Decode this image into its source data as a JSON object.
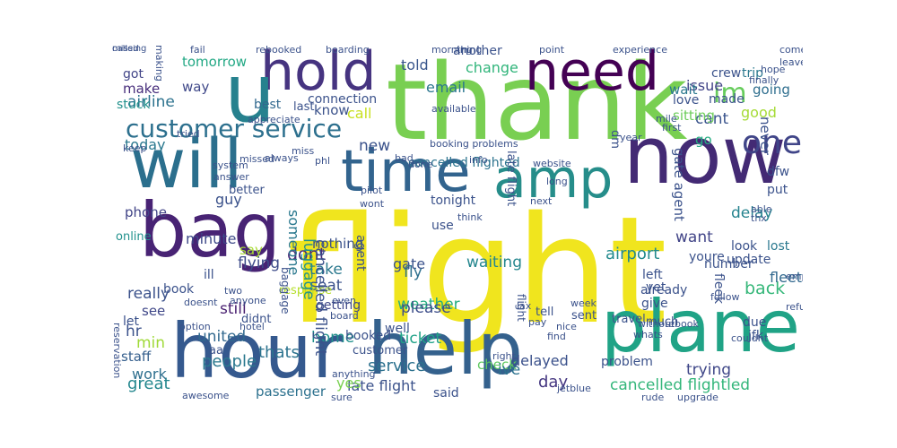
{
  "cloud": {
    "words": [
      {
        "text": "flight",
        "c": "#f0e51e",
        "v": false
      },
      {
        "text": "thank",
        "c": "#79cf52",
        "v": false
      },
      {
        "text": "now",
        "c": "#432a74",
        "v": false
      },
      {
        "text": "will",
        "c": "#2b6f8d",
        "v": false
      },
      {
        "text": "hour",
        "c": "#35598e",
        "v": false
      },
      {
        "text": "help",
        "c": "#34618d",
        "v": false
      },
      {
        "text": "plane",
        "c": "#20a386",
        "v": false
      },
      {
        "text": "amp",
        "c": "#268d8a",
        "v": false
      },
      {
        "text": "bag",
        "c": "#482374",
        "v": false
      },
      {
        "text": "time",
        "c": "#32648e",
        "v": false
      },
      {
        "text": "hold",
        "c": "#463480",
        "v": false
      },
      {
        "text": "u",
        "c": "#26818e",
        "v": false
      },
      {
        "text": "need",
        "c": "#440154",
        "v": false
      },
      {
        "text": "customer service",
        "c": "#2d708e",
        "v": false
      },
      {
        "text": "one",
        "c": "#404588",
        "v": false
      },
      {
        "text": "im",
        "c": "#67cc5c",
        "v": false
      },
      {
        "text": "cancelled flightled",
        "c": "#33b67a",
        "v": false
      },
      {
        "text": "late flight",
        "c": "#3b528b",
        "v": false
      },
      {
        "text": "thats",
        "c": "#2c738e",
        "v": false
      },
      {
        "text": "service",
        "c": "#2c718e",
        "v": false
      },
      {
        "text": "check",
        "c": "#60ca60",
        "v": false
      },
      {
        "text": "weather",
        "c": "#26ad81",
        "v": false
      },
      {
        "text": "delayed",
        "c": "#3b518b",
        "v": false
      },
      {
        "text": "waiting",
        "c": "#24868e",
        "v": false
      },
      {
        "text": "airport",
        "c": "#238a8d",
        "v": false
      },
      {
        "text": "people",
        "c": "#2a788e",
        "v": false
      },
      {
        "text": "trying",
        "c": "#3f4788",
        "v": false
      },
      {
        "text": "flying",
        "c": "#3e4c8a",
        "v": false
      },
      {
        "text": "please",
        "c": "#3d4e8a",
        "v": false
      },
      {
        "text": "ticket",
        "c": "#1fa287",
        "v": false
      },
      {
        "text": "great",
        "c": "#24878e",
        "v": false
      },
      {
        "text": "gate",
        "c": "#3b528b",
        "v": false
      },
      {
        "text": "tomorrow",
        "c": "#22a884",
        "v": false
      },
      {
        "text": "told",
        "c": "#39568c",
        "v": false
      },
      {
        "text": "change",
        "c": "#31b57b",
        "v": false
      },
      {
        "text": "issue",
        "c": "#414487",
        "v": false
      },
      {
        "text": "going",
        "c": "#2e6e8e",
        "v": false
      },
      {
        "text": "airline",
        "c": "#2c728e",
        "v": false
      },
      {
        "text": "good",
        "c": "#a5db36",
        "v": false
      },
      {
        "text": "know",
        "c": "#3b528b",
        "v": false
      },
      {
        "text": "call",
        "c": "#c8e020",
        "v": false
      },
      {
        "text": "email",
        "c": "#2a768e",
        "v": false
      },
      {
        "text": "make",
        "c": "#472d7b",
        "v": false
      },
      {
        "text": "way",
        "c": "#3f4889",
        "v": false
      },
      {
        "text": "got",
        "c": "#414487",
        "v": false
      },
      {
        "text": "cant",
        "c": "#3a548c",
        "v": false
      },
      {
        "text": "go",
        "c": "#25ac82",
        "v": false
      },
      {
        "text": "today",
        "c": "#2a788e",
        "v": false
      },
      {
        "text": "new",
        "c": "#3b528b",
        "v": false
      },
      {
        "text": "phone",
        "c": "#414487",
        "v": false
      },
      {
        "text": "minute",
        "c": "#3e4989",
        "v": false
      },
      {
        "text": "want",
        "c": "#414487",
        "v": false
      },
      {
        "text": "delay",
        "c": "#25838e",
        "v": false
      },
      {
        "text": "say",
        "c": "#a8db34",
        "v": false
      },
      {
        "text": "fly",
        "c": "#2d708e",
        "v": false
      },
      {
        "text": "seat",
        "c": "#3b528b",
        "v": false
      },
      {
        "text": "take",
        "c": "#2a788e",
        "v": false
      },
      {
        "text": "back",
        "c": "#35b779",
        "v": false
      },
      {
        "text": "really",
        "c": "#3b528b",
        "v": false
      },
      {
        "text": "still",
        "c": "#481f70",
        "v": false
      },
      {
        "text": "united",
        "c": "#31688e",
        "v": false
      },
      {
        "text": "work",
        "c": "#2e6f8e",
        "v": false
      },
      {
        "text": "min",
        "c": "#a0da39",
        "v": false
      },
      {
        "text": "hr",
        "c": "#3b528b",
        "v": false
      },
      {
        "text": "yes",
        "c": "#7ad151",
        "v": false
      },
      {
        "text": "day",
        "c": "#453781",
        "v": false
      },
      {
        "text": "ive",
        "c": "#2c728e",
        "v": false
      },
      {
        "text": "home",
        "c": "#21918c",
        "v": false
      },
      {
        "text": "guy",
        "c": "#3b528b",
        "v": false
      },
      {
        "text": "dont",
        "c": "#472c7a",
        "v": false
      },
      {
        "text": "cancelled flighted",
        "c": "#2c738e",
        "v": false
      },
      {
        "text": "staff",
        "c": "#355f8d",
        "v": false
      },
      {
        "text": "see",
        "c": "#3f4788",
        "v": false
      },
      {
        "text": "fleet",
        "c": "#31688e",
        "v": false
      },
      {
        "text": "passenger",
        "c": "#2c718e",
        "v": false
      },
      {
        "text": "getting",
        "c": "#3f4788",
        "v": false
      },
      {
        "text": "nothing",
        "c": "#3b528b",
        "v": false
      },
      {
        "text": "put",
        "c": "#3b528b",
        "v": false
      },
      {
        "text": "dfw",
        "c": "#3b528b",
        "v": false
      },
      {
        "text": "lost",
        "c": "#2a788e",
        "v": false
      },
      {
        "text": "last",
        "c": "#3b528b",
        "v": false
      },
      {
        "text": "connection",
        "c": "#3b528b",
        "v": false
      },
      {
        "text": "best",
        "c": "#31688e",
        "v": false
      },
      {
        "text": "love",
        "c": "#3b528b",
        "v": false
      },
      {
        "text": "wait",
        "c": "#2a788e",
        "v": false
      },
      {
        "text": "made",
        "c": "#3b528b",
        "v": false
      },
      {
        "text": "crew",
        "c": "#3b528b",
        "v": false
      },
      {
        "text": "trip",
        "c": "#2a788e",
        "v": false
      },
      {
        "text": "sitting",
        "c": "#6ccd5a",
        "v": false
      },
      {
        "text": "stuck",
        "c": "#21918c",
        "v": false
      },
      {
        "text": "another",
        "c": "#3b528b",
        "v": false
      },
      {
        "text": "youre",
        "c": "#3b528b",
        "v": false
      },
      {
        "text": "look",
        "c": "#3b528b",
        "v": false
      },
      {
        "text": "number",
        "c": "#3b528b",
        "v": false
      },
      {
        "text": "update",
        "c": "#3b528b",
        "v": false
      },
      {
        "text": "already",
        "c": "#3b528b",
        "v": false
      },
      {
        "text": "give",
        "c": "#3b528b",
        "v": false
      },
      {
        "text": "left",
        "c": "#3b528b",
        "v": false
      },
      {
        "text": "yet",
        "c": "#3b528b",
        "v": false
      },
      {
        "text": "sent",
        "c": "#3b528b",
        "v": false
      },
      {
        "text": "travel",
        "c": "#3b528b",
        "v": false
      },
      {
        "text": "much",
        "c": "#3b528b",
        "v": false
      },
      {
        "text": "due",
        "c": "#3b528b",
        "v": false
      },
      {
        "text": "jfk",
        "c": "#3b528b",
        "v": false
      },
      {
        "text": "said",
        "c": "#3b528b",
        "v": false
      },
      {
        "text": "well",
        "c": "#3b528b",
        "v": false
      },
      {
        "text": "booked",
        "c": "#3b528b",
        "v": false
      },
      {
        "text": "customer",
        "c": "#3b528b",
        "v": false
      },
      {
        "text": "use",
        "c": "#3b528b",
        "v": false
      },
      {
        "text": "tonight",
        "c": "#3b528b",
        "v": false
      },
      {
        "text": "online",
        "c": "#21918c",
        "v": false
      },
      {
        "text": "book",
        "c": "#3b528b",
        "v": false
      },
      {
        "text": "ill",
        "c": "#3b528b",
        "v": false
      },
      {
        "text": "better",
        "c": "#3b528b",
        "v": false
      },
      {
        "text": "didnt",
        "c": "#3b528b",
        "v": false
      },
      {
        "text": "let",
        "c": "#3b528b",
        "v": false
      },
      {
        "text": "aa",
        "c": "#3b528b",
        "v": false
      },
      {
        "text": "problem",
        "c": "#3b528b",
        "v": false
      },
      {
        "text": "tell",
        "c": "#3b528b",
        "v": false
      },
      {
        "text": "response",
        "c": "#b5de2b",
        "v": false
      },
      {
        "text": "someone",
        "c": "#2a788e",
        "v": true
      },
      {
        "text": "agent",
        "c": "#3b528b",
        "v": true
      },
      {
        "text": "luggage",
        "c": "#21918c",
        "v": true
      },
      {
        "text": "dm",
        "c": "#3b528b",
        "v": true
      },
      {
        "text": "never",
        "c": "#3b528b",
        "v": true
      },
      {
        "text": "cancelled flight",
        "c": "#3b528b",
        "v": true
      },
      {
        "text": "fleek",
        "c": "#3b528b",
        "v": true
      },
      {
        "text": "late flight",
        "c": "#3b528b",
        "v": true
      },
      {
        "text": "gate agent",
        "c": "#3b528b",
        "v": true
      },
      {
        "text": "baggage",
        "c": "#3b528b",
        "v": true
      },
      {
        "text": "flight",
        "c": "#3b528b",
        "v": true
      },
      {
        "text": "reservation",
        "c": "#3b528b",
        "v": true
      },
      {
        "text": "making",
        "c": "#3b528b",
        "v": true
      },
      {
        "text": "fail",
        "c": "#3b528b",
        "v": false
      },
      {
        "text": "rebooked",
        "c": "#3b528b",
        "v": false
      },
      {
        "text": "boarding",
        "c": "#3b528b",
        "v": false
      },
      {
        "text": "thing",
        "c": "#3b528b",
        "v": false
      },
      {
        "text": "morning",
        "c": "#3b528b",
        "v": false
      },
      {
        "text": "point",
        "c": "#3b528b",
        "v": false
      },
      {
        "text": "experience",
        "c": "#3b528b",
        "v": false
      },
      {
        "text": "come",
        "c": "#3b528b",
        "v": false
      },
      {
        "text": "leave",
        "c": "#3b528b",
        "v": false
      },
      {
        "text": "keep",
        "c": "#3b528b",
        "v": false
      },
      {
        "text": "tried",
        "c": "#3b528b",
        "v": false
      },
      {
        "text": "appreciate",
        "c": "#3b528b",
        "v": false
      },
      {
        "text": "available",
        "c": "#3b528b",
        "v": false
      },
      {
        "text": "hope",
        "c": "#3b528b",
        "v": false
      },
      {
        "text": "finally",
        "c": "#3b528b",
        "v": false
      },
      {
        "text": "mile",
        "c": "#3b528b",
        "v": false
      },
      {
        "text": "booking problems",
        "c": "#3b528b",
        "v": false
      },
      {
        "text": "first",
        "c": "#3b528b",
        "v": false
      },
      {
        "text": "year",
        "c": "#3b528b",
        "v": false
      },
      {
        "text": "missed",
        "c": "#3b528b",
        "v": false
      },
      {
        "text": "always",
        "c": "#3b528b",
        "v": false
      },
      {
        "text": "system",
        "c": "#3b528b",
        "v": false
      },
      {
        "text": "phl",
        "c": "#3b528b",
        "v": false
      },
      {
        "text": "miss",
        "c": "#3b528b",
        "v": false
      },
      {
        "text": "done",
        "c": "#3b528b",
        "v": false
      },
      {
        "text": "answer",
        "c": "#3b528b",
        "v": false
      },
      {
        "text": "pilot",
        "c": "#3b528b",
        "v": false
      },
      {
        "text": "wont",
        "c": "#3b528b",
        "v": false
      },
      {
        "text": "next",
        "c": "#3b528b",
        "v": false
      },
      {
        "text": "think",
        "c": "#3b528b",
        "v": false
      },
      {
        "text": "website",
        "c": "#3b528b",
        "v": false
      },
      {
        "text": "long",
        "c": "#3b528b",
        "v": false
      },
      {
        "text": "bad",
        "c": "#3b528b",
        "v": false
      },
      {
        "text": "info",
        "c": "#3b528b",
        "v": false
      },
      {
        "text": "able",
        "c": "#3b528b",
        "v": false
      },
      {
        "text": "thx",
        "c": "#3b528b",
        "v": false
      },
      {
        "text": "doesnt",
        "c": "#3b528b",
        "v": false
      },
      {
        "text": "two",
        "c": "#3b528b",
        "v": false
      },
      {
        "text": "option",
        "c": "#3b528b",
        "v": false
      },
      {
        "text": "anyone",
        "c": "#3b528b",
        "v": false
      },
      {
        "text": "hotel",
        "c": "#3b528b",
        "v": false
      },
      {
        "text": "even",
        "c": "#3b528b",
        "v": false
      },
      {
        "text": "board",
        "c": "#3b528b",
        "v": false
      },
      {
        "text": "lax",
        "c": "#3b528b",
        "v": false
      },
      {
        "text": "nice",
        "c": "#3b528b",
        "v": false
      },
      {
        "text": "week",
        "c": "#3b528b",
        "v": false
      },
      {
        "text": "pay",
        "c": "#3b528b",
        "v": false
      },
      {
        "text": "find",
        "c": "#3b528b",
        "v": false
      },
      {
        "text": "whats",
        "c": "#3b528b",
        "v": false
      },
      {
        "text": "without",
        "c": "#3b528b",
        "v": false
      },
      {
        "text": "rebook",
        "c": "#3b528b",
        "v": false
      },
      {
        "text": "employee",
        "c": "#3b528b",
        "v": false
      },
      {
        "text": "refund",
        "c": "#3b528b",
        "v": false
      },
      {
        "text": "couldnt",
        "c": "#3b528b",
        "v": false
      },
      {
        "text": "follow",
        "c": "#3b528b",
        "v": false
      },
      {
        "text": "worst",
        "c": "#3b528b",
        "v": false
      },
      {
        "text": "right",
        "c": "#3b528b",
        "v": false
      },
      {
        "text": "jetblue",
        "c": "#3b528b",
        "v": false
      },
      {
        "text": "rude",
        "c": "#3b528b",
        "v": false
      },
      {
        "text": "upgrade",
        "c": "#3b528b",
        "v": false
      },
      {
        "text": "awesome",
        "c": "#3b528b",
        "v": false
      },
      {
        "text": "sure",
        "c": "#3b528b",
        "v": false
      },
      {
        "text": "anything",
        "c": "#3b528b",
        "v": false
      },
      {
        "text": "called",
        "c": "#3b528b",
        "v": false
      },
      {
        "text": "missing",
        "c": "#3b528b",
        "v": false
      }
    ]
  }
}
